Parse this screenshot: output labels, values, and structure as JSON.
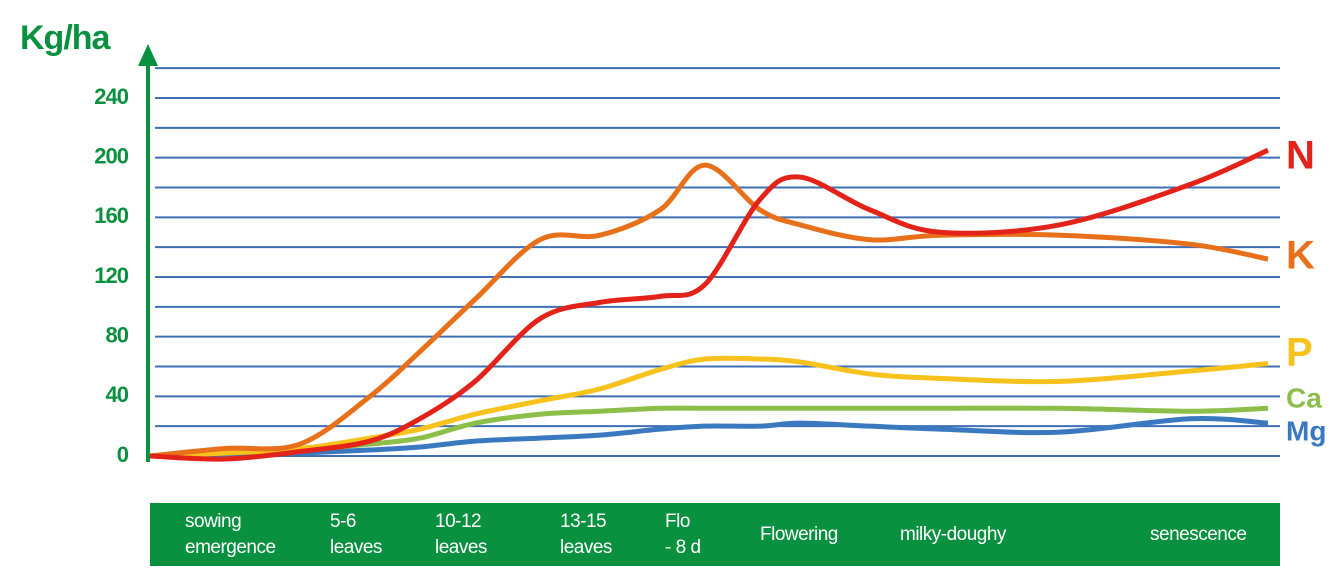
{
  "chart_data": {
    "type": "line",
    "y_axis_label": "Kg/ha",
    "categories": [
      null,
      "sowing\nemergence",
      null,
      "5-6\nleaves",
      null,
      "10-12\nleaves",
      null,
      "13-15\nleaves",
      null,
      "Flo\n- 8 d",
      null,
      "Flowering",
      null,
      "milky-doughy",
      null,
      "senescence",
      null
    ],
    "series": [
      {
        "name": "N",
        "color": "#e32219",
        "values": [
          0,
          -2,
          3,
          10,
          25,
          50,
          92,
          103,
          107,
          115,
          172,
          187,
          165,
          150,
          155,
          182,
          205
        ]
      },
      {
        "name": "K",
        "color": "#e8701a",
        "values": [
          0,
          5,
          8,
          40,
          70,
          105,
          145,
          148,
          165,
          195,
          165,
          155,
          145,
          148,
          148,
          142,
          132
        ]
      },
      {
        "name": "P",
        "color": "#f8c21c",
        "values": [
          0,
          2,
          5,
          12,
          18,
          28,
          37,
          45,
          58,
          65,
          65,
          63,
          55,
          52,
          50,
          57,
          62
        ]
      },
      {
        "name": "Ca",
        "color": "#8cbf4a",
        "values": [
          0,
          2,
          4,
          8,
          12,
          22,
          28,
          30,
          32,
          32,
          32,
          32,
          32,
          32,
          32,
          30,
          32
        ]
      },
      {
        "name": "Mg",
        "color": "#3a78c0",
        "values": [
          0,
          0,
          2,
          4,
          6,
          10,
          12,
          14,
          18,
          20,
          20,
          22,
          20,
          18,
          16,
          25,
          22
        ]
      }
    ],
    "ylim": [
      0,
      240
    ],
    "yticks": [
      0,
      40,
      80,
      120,
      160,
      200,
      240
    ],
    "minor_gridlines": [
      20,
      60,
      100,
      140,
      180,
      220,
      260
    ],
    "grid": true,
    "grid_color": "#3f6fb5",
    "axis_color": "#0a9140"
  }
}
